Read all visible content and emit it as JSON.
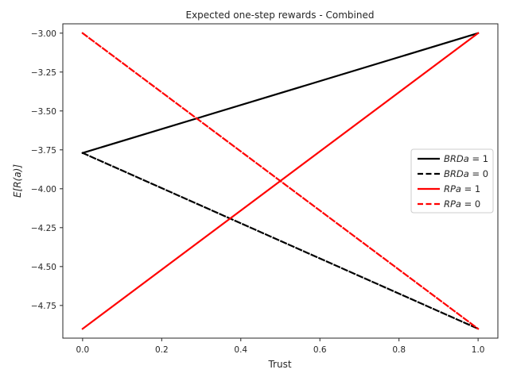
{
  "chart_data": {
    "type": "line",
    "title": "Expected one-step rewards - Combined",
    "xlabel": "Trust",
    "ylabel": "E[R(a)]",
    "xlim": [
      -0.05,
      1.05
    ],
    "ylim": [
      -4.96,
      -2.94
    ],
    "xticks": [
      0.0,
      0.2,
      0.4,
      0.6,
      0.8,
      1.0
    ],
    "xtick_labels": [
      "0.0",
      "0.2",
      "0.4",
      "0.6",
      "0.8",
      "1.0"
    ],
    "yticks": [
      -3.0,
      -3.25,
      -3.5,
      -3.75,
      -4.0,
      -4.25,
      -4.5,
      -4.75
    ],
    "ytick_labels": [
      "−3.00",
      "−3.25",
      "−3.50",
      "−3.75",
      "−4.00",
      "−4.25",
      "−4.50",
      "−4.75"
    ],
    "grid": false,
    "legend_position": "center-right",
    "series": [
      {
        "name": "BRDa = 1",
        "name_var": "BRDa",
        "name_val": " = 1",
        "color": "#000000",
        "dash": "solid",
        "x": [
          0.0,
          1.0
        ],
        "y": [
          -3.77,
          -3.0
        ]
      },
      {
        "name": "BRDa = 0",
        "name_var": "BRDa",
        "name_val": " = 0",
        "color": "#000000",
        "dash": "dashed",
        "x": [
          0.0,
          1.0
        ],
        "y": [
          -3.77,
          -4.9
        ]
      },
      {
        "name": "RPa = 1",
        "name_var": "RPa",
        "name_val": " = 1",
        "color": "#ff0000",
        "dash": "solid",
        "x": [
          0.0,
          1.0
        ],
        "y": [
          -4.9,
          -3.0
        ]
      },
      {
        "name": "RPa = 0",
        "name_var": "RPa",
        "name_val": " = 0",
        "color": "#ff0000",
        "dash": "dashed",
        "x": [
          0.0,
          1.0
        ],
        "y": [
          -3.0,
          -4.9
        ]
      }
    ]
  }
}
